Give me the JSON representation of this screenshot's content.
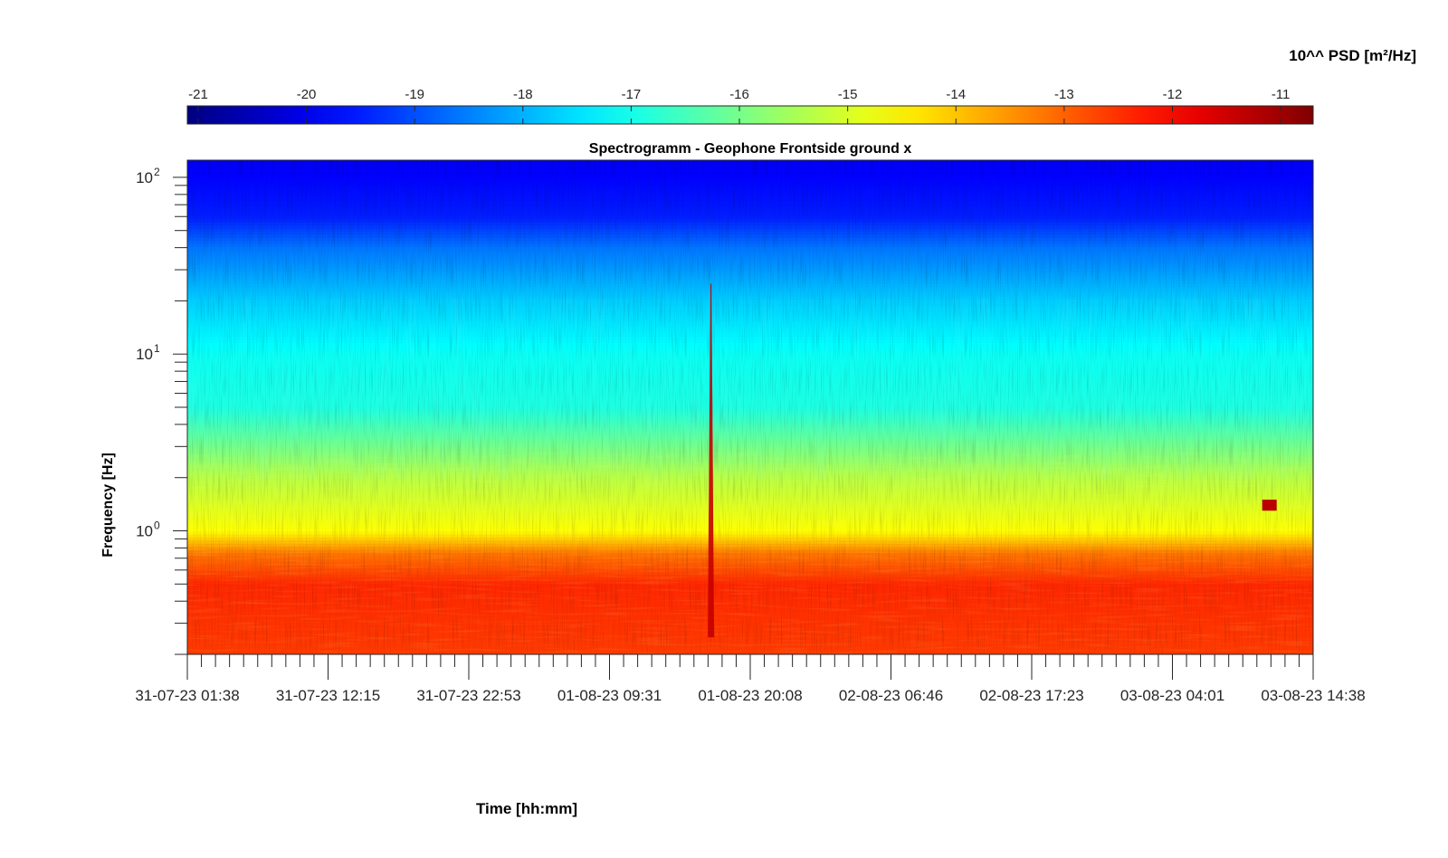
{
  "chart_data": {
    "type": "heatmap",
    "title": "Spectrogramm - Geophone Frontside ground x",
    "xlabel": "Time [hh:mm]",
    "ylabel": "Frequency [Hz]",
    "colorbar": {
      "label": "10^^ PSD [m²/Hz]",
      "ticks": [
        -21,
        -20,
        -19,
        -18,
        -17,
        -16,
        -15,
        -14,
        -13,
        -12,
        -11
      ],
      "tick_labels": [
        "-21",
        "-20",
        "-19",
        "-18",
        "-17",
        "-16",
        "-15",
        "-14",
        "-13",
        "-12",
        "-11"
      ],
      "range": [
        -21.1,
        -10.7
      ],
      "colormap": "jet",
      "location": "top"
    },
    "x_axis": {
      "tick_labels": [
        "31-07-23 01:38",
        "31-07-23 12:15",
        "31-07-23 22:53",
        "01-08-23 09:31",
        "01-08-23 20:08",
        "02-08-23 06:46",
        "02-08-23 17:23",
        "03-08-23 04:01",
        "03-08-23 14:38"
      ],
      "range": [
        "31-07-23 01:38",
        "03-08-23 14:38"
      ],
      "minor_ticks_per_major": 10
    },
    "y_axis": {
      "scale": "log",
      "range": [
        0.2,
        125
      ],
      "ticks": [
        1,
        10,
        100
      ],
      "tick_labels": [
        "10",
        "10",
        "10"
      ],
      "tick_exponents": [
        "0",
        "1",
        "2"
      ]
    },
    "psd_profile": [
      {
        "frequency_hz": 0.2,
        "log10_psd": -12.6
      },
      {
        "frequency_hz": 0.5,
        "log10_psd": -12.4
      },
      {
        "frequency_hz": 0.75,
        "log10_psd": -13.2
      },
      {
        "frequency_hz": 1.0,
        "log10_psd": -14.6
      },
      {
        "frequency_hz": 2.0,
        "log10_psd": -15.3
      },
      {
        "frequency_hz": 5.0,
        "log10_psd": -16.9
      },
      {
        "frequency_hz": 10.0,
        "log10_psd": -17.1
      },
      {
        "frequency_hz": 20.0,
        "log10_psd": -17.7
      },
      {
        "frequency_hz": 40.0,
        "log10_psd": -18.6
      },
      {
        "frequency_hz": 60.0,
        "log10_psd": -19.5
      },
      {
        "frequency_hz": 125.0,
        "log10_psd": -19.9
      }
    ],
    "events": [
      {
        "time": "01-08-23 17:10",
        "frequency_range_hz": [
          0.25,
          25
        ],
        "log10_psd": -11.4,
        "description": "broadband transient"
      },
      {
        "time": "03-08-23 11:20",
        "frequency_range_hz": [
          1.3,
          1.5
        ],
        "log10_psd": -11.3,
        "description": "narrowband burst"
      }
    ],
    "grid": false
  }
}
